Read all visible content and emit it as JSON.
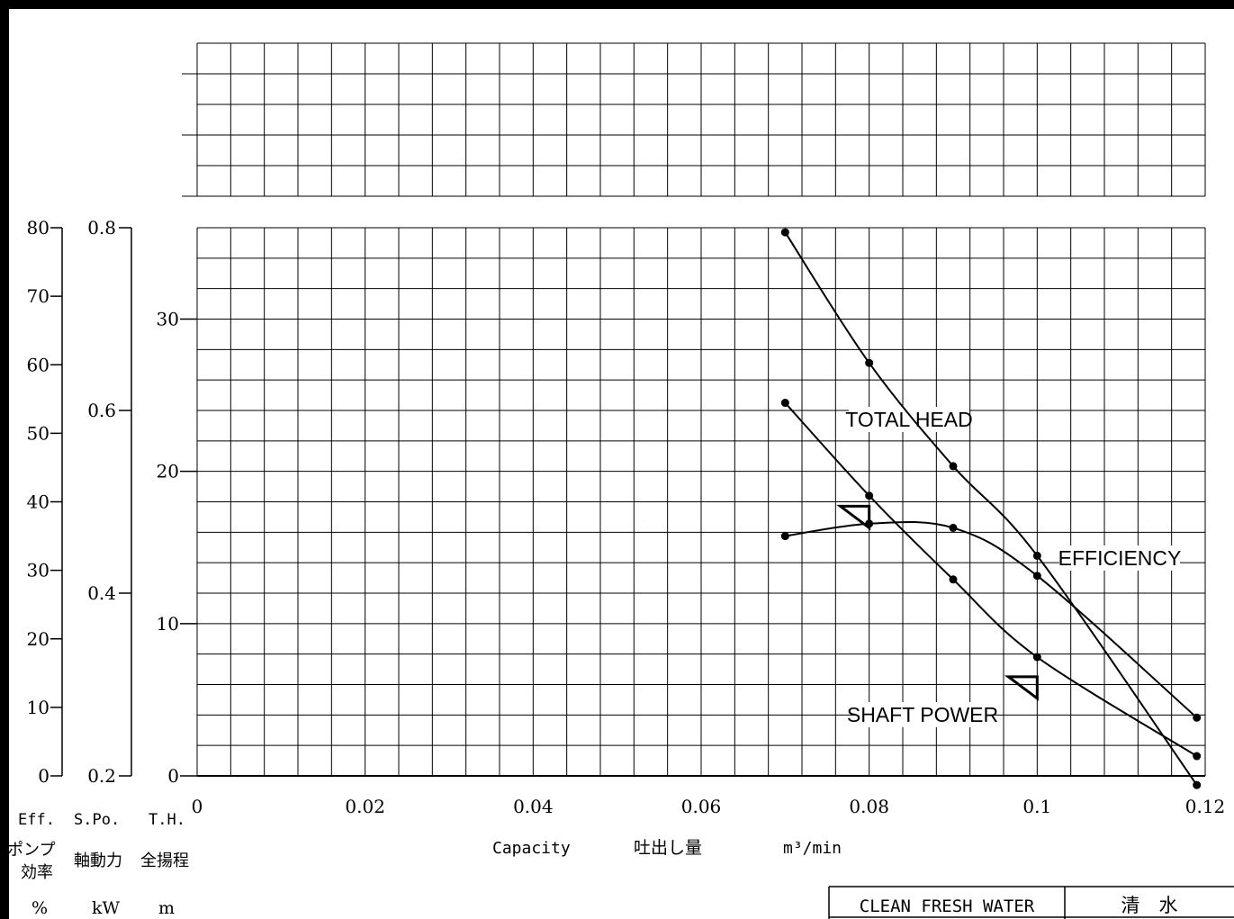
{
  "chart_data": {
    "type": "line",
    "x_axis": {
      "range": [
        0,
        0.12
      ],
      "ticks": [
        "0",
        "0.02",
        "0.04",
        "0.06",
        "0.08",
        "0.1",
        "0.12"
      ],
      "ticks_values": [
        0,
        0.02,
        0.04,
        0.06,
        0.08,
        0.1,
        0.12
      ],
      "label_en": "Capacity",
      "label_jp": "吐出し量",
      "unit": "m³/min"
    },
    "axes": {
      "head": {
        "range": [
          0,
          36
        ],
        "ticks": [
          "0",
          "10",
          "20",
          "30"
        ],
        "ticks_values": [
          0,
          10,
          20,
          30
        ],
        "abbr": "T.H.",
        "label_jp": "全揚程",
        "unit": "m"
      },
      "power": {
        "range": [
          0.2,
          0.8
        ],
        "ticks": [
          "0.2",
          "0.4",
          "0.6",
          "0.8"
        ],
        "ticks_values": [
          0.2,
          0.4,
          0.6,
          0.8
        ],
        "abbr": "S.Po.",
        "label_jp": "軸動力",
        "unit": "kW"
      },
      "efficiency": {
        "range": [
          0,
          80
        ],
        "ticks": [
          "0",
          "10",
          "20",
          "30",
          "40",
          "50",
          "60",
          "70",
          "80"
        ],
        "ticks_values": [
          0,
          10,
          20,
          30,
          40,
          50,
          60,
          70,
          80
        ],
        "abbr": "Eff.",
        "label_jp_line1": "ポンプ",
        "label_jp_line2": "効率",
        "unit": "%"
      }
    },
    "series": [
      {
        "name": "TOTAL HEAD",
        "axis": "head",
        "x": [
          0.07,
          0.08,
          0.09,
          0.1,
          0.119
        ],
        "y": [
          24.5,
          18.4,
          12.9,
          7.8,
          1.3
        ]
      },
      {
        "name": "EFFICIENCY",
        "axis": "efficiency",
        "x": [
          0.07,
          0.08,
          0.09,
          0.1,
          0.119
        ],
        "y": [
          35.0,
          36.8,
          36.2,
          29.2,
          8.5
        ]
      },
      {
        "name": "SHAFT POWER",
        "axis": "power",
        "x": [
          0.07,
          0.08,
          0.09,
          0.1,
          0.119
        ],
        "y": [
          0.795,
          0.652,
          0.539,
          0.441,
          0.19
        ]
      }
    ],
    "operating_points": [
      {
        "axis": "head",
        "x": 0.08,
        "y": 17.0
      },
      {
        "axis": "head",
        "x": 0.1,
        "y": 5.8
      }
    ],
    "grid": true
  },
  "footer": {
    "liquid_en": "CLEAN FRESH WATER",
    "liquid_jp": "清　水"
  }
}
